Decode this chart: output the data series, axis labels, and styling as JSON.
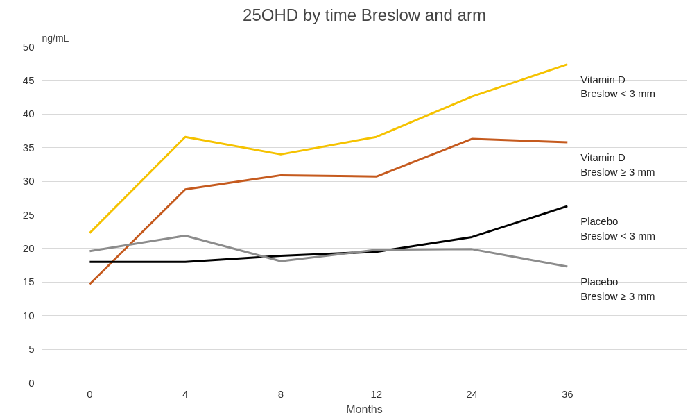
{
  "chart_data": {
    "type": "line",
    "title": "25OHD by time Breslow and arm",
    "xlabel": "Months",
    "ylabel": "ng/mL",
    "categories": [
      "0",
      "4",
      "8",
      "12",
      "24",
      "36"
    ],
    "series": [
      {
        "name": "Vitamin D\nBreslow < 3 mm",
        "color": "#f5c200",
        "values": [
          22.3,
          36.6,
          34.0,
          36.6,
          42.6,
          47.4
        ]
      },
      {
        "name": "Vitamin D\nBreslow ≥ 3 mm",
        "color": "#c55a1e",
        "values": [
          14.7,
          28.8,
          30.9,
          30.7,
          36.3,
          35.8
        ]
      },
      {
        "name": "Placebo\nBreslow < 3 mm",
        "color": "#000000",
        "values": [
          18.0,
          18.0,
          18.9,
          19.5,
          21.7,
          26.3
        ]
      },
      {
        "name": "Placebo\nBreslow ≥ 3 mm",
        "color": "#8c8c8c",
        "values": [
          19.6,
          21.9,
          18.1,
          19.8,
          19.9,
          17.3
        ]
      }
    ],
    "ylim": [
      0,
      50
    ],
    "yticks": [
      0,
      5,
      10,
      15,
      20,
      25,
      30,
      35,
      40,
      45,
      50
    ],
    "grid": "y",
    "legend": false,
    "marker": "none",
    "line_style": "solid"
  }
}
